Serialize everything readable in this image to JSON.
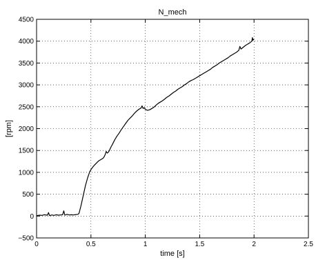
{
  "chart_data": {
    "type": "line",
    "title": "N_mech",
    "xlabel": "time [s]",
    "ylabel": "[rpm]",
    "xlim": [
      0,
      2.5
    ],
    "ylim": [
      -500,
      4500
    ],
    "grid": true,
    "x_ticks": [
      0,
      0.5,
      1,
      1.5,
      2,
      2.5
    ],
    "x_tick_labels": [
      "0",
      "0.5",
      "1",
      "1.5",
      "2",
      "2.5"
    ],
    "y_ticks": [
      -500,
      0,
      500,
      1000,
      1500,
      2000,
      2500,
      3000,
      3500,
      4000,
      4500
    ],
    "y_tick_labels": [
      "−500",
      "0",
      "500",
      "1000",
      "1500",
      "2000",
      "2500",
      "3000",
      "3500",
      "4000",
      "4500"
    ],
    "line_color": "#000000",
    "series": [
      {
        "x": [
          0,
          0.03,
          0.05,
          0.07,
          0.1,
          0.11,
          0.12,
          0.14,
          0.16,
          0.18,
          0.2,
          0.22,
          0.24,
          0.25,
          0.26,
          0.28,
          0.3,
          0.32,
          0.34,
          0.36,
          0.38,
          0.39,
          0.41,
          0.43,
          0.45,
          0.47,
          0.49,
          0.51,
          0.53,
          0.55,
          0.57,
          0.59,
          0.61,
          0.62,
          0.63,
          0.64,
          0.65,
          0.66,
          0.67,
          0.68,
          0.7,
          0.72,
          0.74,
          0.76,
          0.78,
          0.8,
          0.82,
          0.84,
          0.86,
          0.88,
          0.9,
          0.92,
          0.94,
          0.96,
          0.97,
          0.98,
          0.99,
          1.0,
          1.02,
          1.04,
          1.06,
          1.08,
          1.1,
          1.12,
          1.14,
          1.16,
          1.18,
          1.2,
          1.22,
          1.24,
          1.26,
          1.28,
          1.3,
          1.32,
          1.34,
          1.36,
          1.38,
          1.4,
          1.42,
          1.44,
          1.46,
          1.48,
          1.5,
          1.52,
          1.54,
          1.56,
          1.58,
          1.6,
          1.62,
          1.64,
          1.66,
          1.68,
          1.7,
          1.72,
          1.74,
          1.76,
          1.78,
          1.8,
          1.82,
          1.84,
          1.86,
          1.87,
          1.88,
          1.9,
          1.92,
          1.94,
          1.96,
          1.98,
          1.985,
          1.99,
          2.0
        ],
        "y": [
          10,
          20,
          15,
          30,
          20,
          80,
          10,
          25,
          15,
          30,
          20,
          25,
          30,
          120,
          20,
          40,
          25,
          30,
          25,
          35,
          40,
          60,
          250,
          480,
          700,
          880,
          1020,
          1100,
          1160,
          1210,
          1260,
          1290,
          1320,
          1350,
          1400,
          1480,
          1440,
          1460,
          1500,
          1560,
          1650,
          1750,
          1830,
          1900,
          1980,
          2050,
          2120,
          2190,
          2240,
          2290,
          2350,
          2400,
          2440,
          2470,
          2520,
          2460,
          2480,
          2440,
          2420,
          2430,
          2460,
          2490,
          2540,
          2580,
          2610,
          2640,
          2680,
          2720,
          2750,
          2790,
          2830,
          2860,
          2900,
          2930,
          2960,
          3000,
          3030,
          3070,
          3100,
          3120,
          3150,
          3180,
          3210,
          3240,
          3270,
          3300,
          3330,
          3360,
          3400,
          3430,
          3460,
          3500,
          3530,
          3560,
          3590,
          3620,
          3660,
          3690,
          3720,
          3750,
          3790,
          3880,
          3820,
          3860,
          3900,
          3930,
          3960,
          4000,
          4080,
          4020,
          4050
        ]
      }
    ]
  }
}
